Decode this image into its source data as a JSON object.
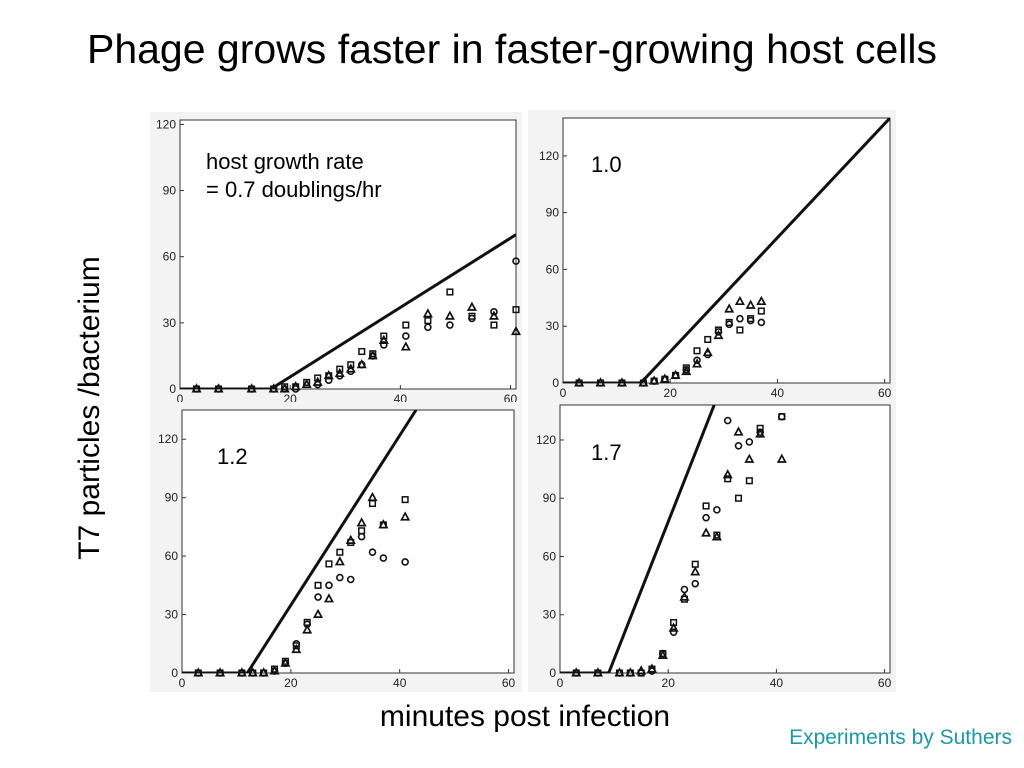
{
  "slide": {
    "title": "Phage grows faster in faster-growing host cells",
    "y_label": "T7 particles /bacterium",
    "x_label": "minutes post infection",
    "credit": "Experiments by Suthers",
    "credit_color": "#1a9aa6"
  },
  "chart_data": [
    {
      "type": "scatter",
      "annotation": [
        "host growth rate",
        "= 0.7 doublings/hr"
      ],
      "xlim": [
        0,
        61
      ],
      "ylim": [
        0,
        122
      ],
      "xticks": [
        0,
        20,
        40,
        60
      ],
      "yticks": [
        0,
        30,
        60,
        90,
        120
      ],
      "model_line": {
        "x": [
          0,
          16.5,
          61
        ],
        "y": [
          0,
          0,
          70
        ]
      },
      "series": [
        {
          "marker": "circle",
          "x": [
            3,
            7,
            13,
            17,
            19,
            21,
            25,
            27,
            29,
            31,
            33,
            35,
            37,
            41,
            45,
            49,
            53,
            57,
            61
          ],
          "y": [
            0,
            0,
            0,
            0,
            0,
            0,
            2,
            4,
            6,
            8,
            11,
            15,
            20,
            24,
            28,
            29,
            32,
            35,
            58
          ]
        },
        {
          "marker": "square",
          "x": [
            3,
            7,
            13,
            17,
            19,
            21,
            23,
            25,
            27,
            29,
            31,
            33,
            35,
            37,
            41,
            45,
            49,
            53,
            57,
            61
          ],
          "y": [
            0,
            0,
            0,
            0,
            1,
            1,
            3,
            5,
            6,
            9,
            11,
            17,
            16,
            24,
            29,
            31,
            44,
            33,
            29,
            36
          ]
        },
        {
          "marker": "triangle",
          "x": [
            3,
            7,
            13,
            17,
            19,
            21,
            23,
            25,
            27,
            29,
            31,
            33,
            35,
            37,
            41,
            45,
            49,
            53,
            57,
            61
          ],
          "y": [
            0,
            0,
            0,
            0,
            0,
            1,
            2,
            3,
            6,
            7,
            9,
            11,
            15,
            22,
            19,
            34,
            33,
            37,
            33,
            26
          ]
        }
      ]
    },
    {
      "type": "scatter",
      "annotation": [
        "1.0"
      ],
      "xlim": [
        0,
        61
      ],
      "ylim": [
        0,
        140
      ],
      "xticks": [
        0,
        20,
        40,
        60
      ],
      "yticks": [
        0,
        30,
        60,
        90,
        120
      ],
      "model_line": {
        "x": [
          0,
          14.5,
          61
        ],
        "y": [
          0,
          0,
          140
        ]
      },
      "series": [
        {
          "marker": "circle",
          "x": [
            3,
            7,
            11,
            15,
            17,
            19,
            21,
            23,
            25,
            27,
            29,
            31,
            33,
            35,
            37
          ],
          "y": [
            0,
            0,
            0,
            0,
            1,
            2,
            4,
            7,
            12,
            15,
            27,
            31,
            34,
            33,
            32
          ]
        },
        {
          "marker": "square",
          "x": [
            3,
            7,
            11,
            15,
            17,
            19,
            21,
            23,
            25,
            27,
            29,
            31,
            33,
            35,
            37
          ],
          "y": [
            0,
            0,
            0,
            0,
            1,
            2,
            4,
            8,
            17,
            23,
            28,
            32,
            28,
            34,
            38
          ]
        },
        {
          "marker": "triangle",
          "x": [
            3,
            7,
            11,
            15,
            17,
            19,
            21,
            23,
            25,
            27,
            29,
            31,
            33,
            35,
            37
          ],
          "y": [
            0,
            0,
            0,
            0,
            1,
            2,
            4,
            6,
            10,
            16,
            25,
            39,
            43,
            41,
            43
          ]
        }
      ]
    },
    {
      "type": "scatter",
      "annotation": [
        "1.2"
      ],
      "xlim": [
        0,
        61
      ],
      "ylim": [
        0,
        135
      ],
      "xticks": [
        0,
        20,
        40,
        60
      ],
      "yticks": [
        0,
        30,
        60,
        90,
        120
      ],
      "model_line": {
        "x": [
          0,
          12,
          43
        ],
        "y": [
          0,
          0,
          135
        ]
      },
      "series": [
        {
          "marker": "circle",
          "x": [
            3,
            7,
            11,
            13,
            15,
            17,
            19,
            21,
            23,
            25,
            27,
            29,
            31,
            33,
            35,
            37,
            41
          ],
          "y": [
            0,
            0,
            0,
            0,
            0,
            1,
            5,
            15,
            25,
            39,
            45,
            49,
            48,
            70,
            62,
            59,
            57
          ]
        },
        {
          "marker": "square",
          "x": [
            3,
            7,
            11,
            13,
            15,
            17,
            19,
            21,
            23,
            25,
            27,
            29,
            31,
            33,
            35,
            37,
            41
          ],
          "y": [
            0,
            0,
            0,
            0,
            0,
            2,
            6,
            14,
            26,
            45,
            56,
            62,
            67,
            73,
            87,
            76,
            89
          ]
        },
        {
          "marker": "triangle",
          "x": [
            3,
            7,
            11,
            13,
            15,
            17,
            19,
            21,
            23,
            25,
            27,
            29,
            31,
            33,
            35,
            37,
            41
          ],
          "y": [
            0,
            0,
            0,
            0,
            0,
            1,
            5,
            12,
            22,
            30,
            38,
            57,
            68,
            77,
            90,
            76,
            80
          ]
        }
      ]
    },
    {
      "type": "scatter",
      "annotation": [
        "1.7"
      ],
      "xlim": [
        0,
        61
      ],
      "ylim": [
        0,
        138
      ],
      "xticks": [
        0,
        20,
        40,
        60
      ],
      "yticks": [
        0,
        30,
        60,
        90,
        120
      ],
      "model_line": {
        "x": [
          0,
          9,
          28.5
        ],
        "y": [
          0,
          0,
          138
        ]
      },
      "series": [
        {
          "marker": "circle",
          "x": [
            3,
            7,
            11,
            13,
            15,
            17,
            19,
            21,
            23,
            25,
            27,
            29,
            31,
            33,
            35,
            37,
            41
          ],
          "y": [
            0,
            0,
            0,
            0,
            0,
            1,
            10,
            21,
            43,
            46,
            80,
            84,
            130,
            117,
            119,
            124,
            132
          ]
        },
        {
          "marker": "square",
          "x": [
            3,
            7,
            11,
            13,
            15,
            17,
            19,
            21,
            23,
            25,
            27,
            29,
            31,
            33,
            35,
            37,
            41
          ],
          "y": [
            0,
            0,
            0,
            0,
            0,
            2,
            10,
            26,
            38,
            56,
            86,
            71,
            100,
            90,
            99,
            126,
            132
          ]
        },
        {
          "marker": "triangle",
          "x": [
            3,
            7,
            11,
            13,
            15,
            17,
            19,
            21,
            23,
            25,
            27,
            29,
            31,
            33,
            35,
            37,
            41
          ],
          "y": [
            0,
            0,
            0,
            0,
            1,
            2,
            9,
            23,
            39,
            52,
            72,
            70,
            102,
            124,
            110,
            123,
            110
          ]
        }
      ]
    }
  ]
}
